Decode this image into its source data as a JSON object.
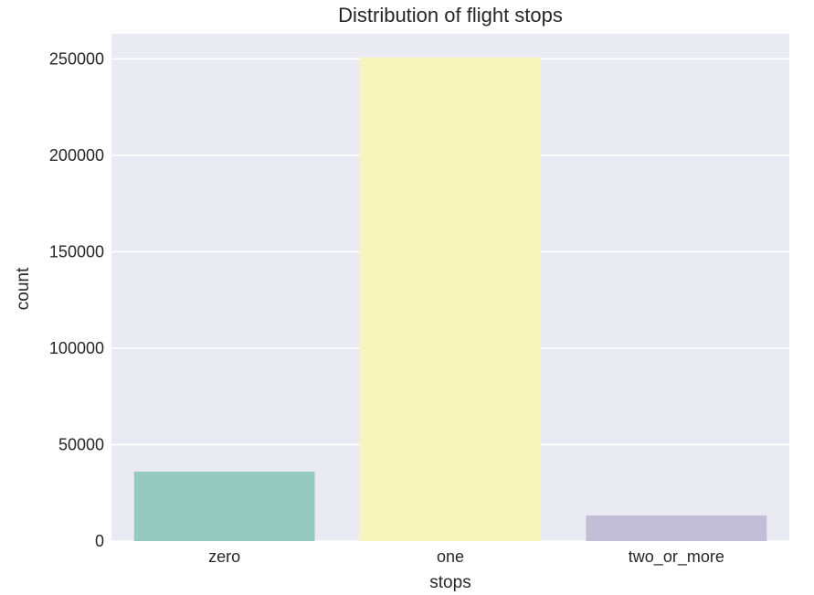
{
  "chart_data": {
    "type": "bar",
    "title": "Distribution of flight stops",
    "xlabel": "stops",
    "ylabel": "count",
    "categories": [
      "zero",
      "one",
      "two_or_more"
    ],
    "values": [
      36000,
      250800,
      13300
    ],
    "colors": [
      "#96cac1",
      "#f6f6bc",
      "#c1bed6"
    ],
    "ylim": [
      0,
      263000
    ],
    "yticks": [
      0,
      50000,
      100000,
      150000,
      200000,
      250000
    ],
    "ytick_labels": [
      "0",
      "50000",
      "100000",
      "150000",
      "200000",
      "250000"
    ],
    "grid": true,
    "background": "#eaeaf2",
    "legend": "none"
  }
}
